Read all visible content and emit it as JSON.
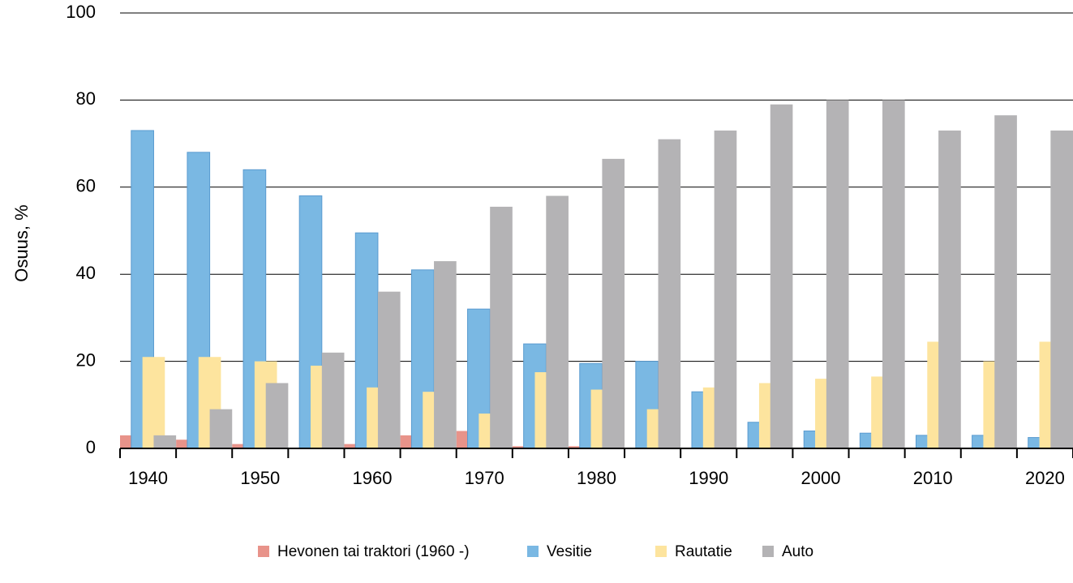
{
  "chart_data": {
    "type": "bar",
    "y_label": "Osuus, %",
    "categories": [
      "1940",
      null,
      "1950",
      null,
      "1960",
      null,
      "1970",
      null,
      "1980",
      null,
      "1990",
      null,
      "2000",
      null,
      "2010",
      null,
      "2020"
    ],
    "series": [
      {
        "name": "Hevonen tai traktori (1960 -)",
        "color": "#e8938a",
        "values": [
          3,
          2,
          1,
          0,
          1,
          3,
          4,
          0.5,
          0.5,
          0,
          0,
          0,
          0,
          0,
          0,
          0,
          0
        ]
      },
      {
        "name": "Vesitie",
        "color": "#7ab8e3",
        "values": [
          73,
          68,
          64,
          58,
          49.5,
          41,
          32,
          24,
          19.5,
          20,
          13,
          6,
          4,
          3.5,
          3,
          3,
          2.5
        ]
      },
      {
        "name": "Rautatie",
        "color": "#fde49e",
        "values": [
          21,
          21,
          20,
          19,
          14,
          13,
          8,
          17.5,
          13.5,
          9,
          14,
          15,
          16,
          16.5,
          24.5,
          20,
          24.5
        ]
      },
      {
        "name": "Auto",
        "color": "#b4b3b5",
        "values": [
          3,
          9,
          15,
          22,
          36,
          43,
          55.5,
          58,
          66.5,
          71,
          73,
          79,
          80,
          80,
          73,
          76.5,
          73
        ]
      }
    ],
    "ylim": [
      0,
      100
    ],
    "yticks": [
      0,
      20,
      40,
      60,
      80,
      100
    ],
    "grid": true
  }
}
